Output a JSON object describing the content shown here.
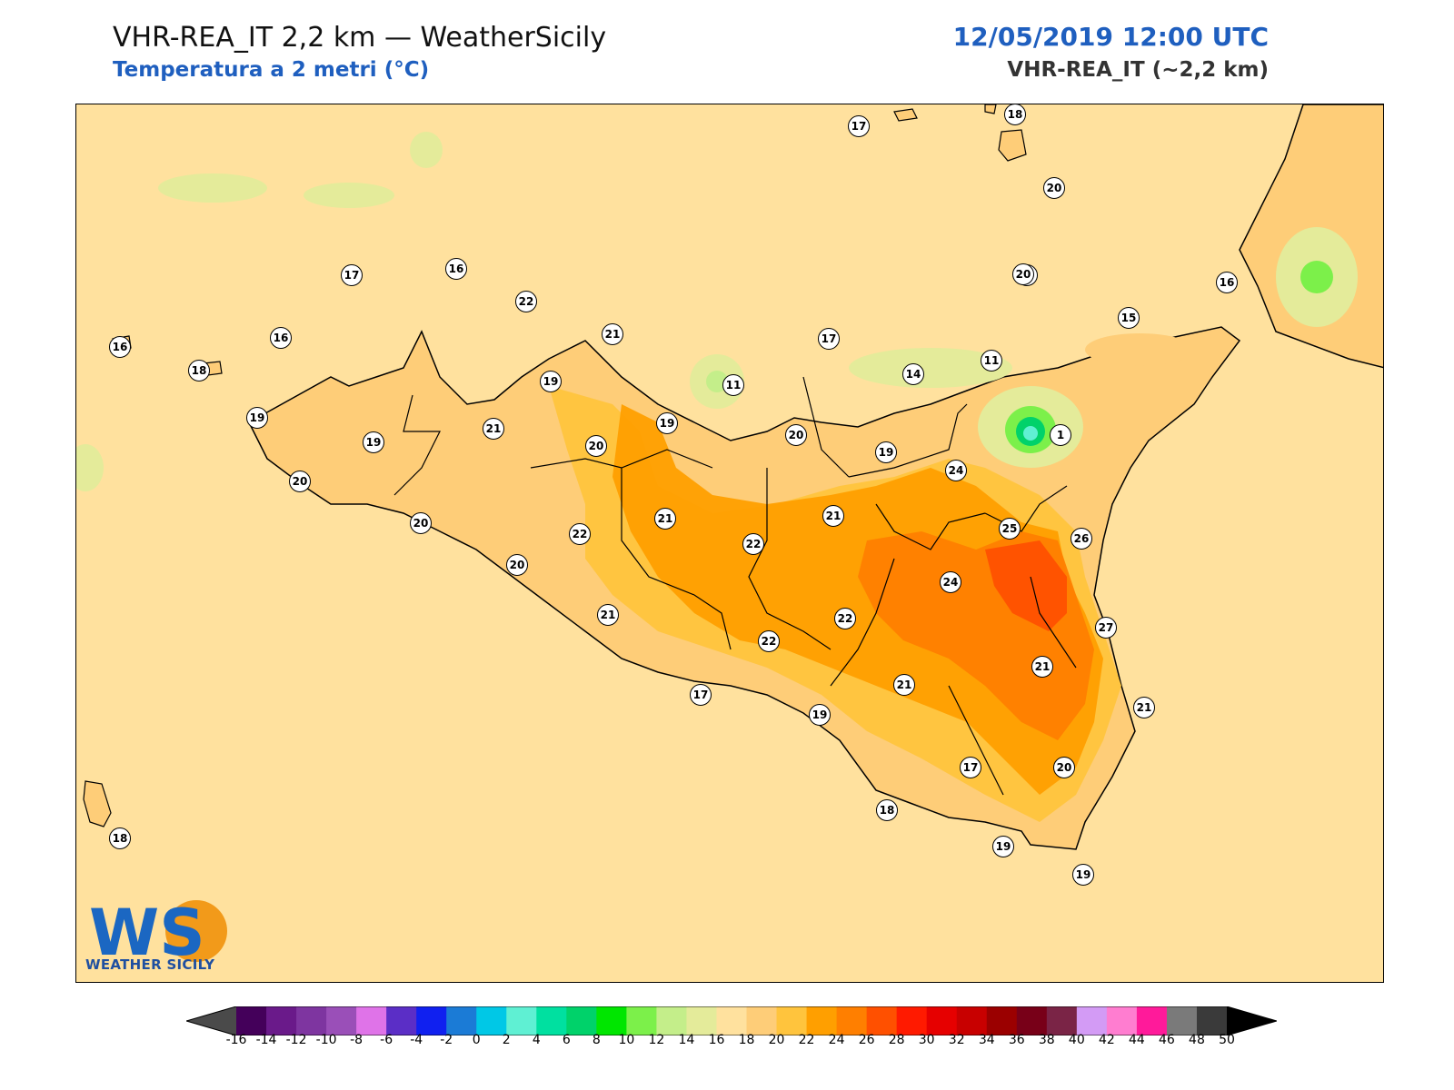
{
  "header": {
    "title": "VHR-REA_IT 2,2 km — WeatherSicily",
    "subtitle": "Temperatura a 2 metri (°C)",
    "datetime": "12/05/2019 12:00 UTC",
    "model": "VHR-REA_IT (~2,2 km)"
  },
  "logo": {
    "letters": "WS",
    "name": "WEATHER SICILY"
  },
  "stations": [
    {
      "value": "17"
    },
    {
      "value": "18"
    },
    {
      "value": "20"
    },
    {
      "value": "20"
    },
    {
      "value": "16"
    },
    {
      "value": "15"
    },
    {
      "value": "11"
    },
    {
      "value": "14"
    },
    {
      "value": "17"
    },
    {
      "value": "1"
    },
    {
      "value": "11"
    },
    {
      "value": "20"
    },
    {
      "value": "19"
    },
    {
      "value": "24"
    },
    {
      "value": "21"
    },
    {
      "value": "25"
    },
    {
      "value": "26"
    },
    {
      "value": "24"
    },
    {
      "value": "27"
    },
    {
      "value": "21"
    },
    {
      "value": "21"
    },
    {
      "value": "22"
    },
    {
      "value": "21"
    },
    {
      "value": "20"
    },
    {
      "value": "17"
    },
    {
      "value": "19"
    },
    {
      "value": "18"
    },
    {
      "value": "19"
    },
    {
      "value": "19"
    },
    {
      "value": "16"
    },
    {
      "value": "22"
    },
    {
      "value": "17"
    },
    {
      "value": "16"
    },
    {
      "value": "20"
    },
    {
      "value": "21"
    },
    {
      "value": "19"
    },
    {
      "value": "16"
    },
    {
      "value": "18"
    },
    {
      "value": "19"
    },
    {
      "value": "19"
    },
    {
      "value": "21"
    },
    {
      "value": "20"
    },
    {
      "value": "19"
    },
    {
      "value": "20"
    },
    {
      "value": "20"
    },
    {
      "value": "22"
    },
    {
      "value": "20"
    },
    {
      "value": "21"
    },
    {
      "value": "22"
    },
    {
      "value": "21"
    },
    {
      "value": "22"
    },
    {
      "value": "17"
    },
    {
      "value": "18"
    }
  ],
  "colorbar": {
    "ticks": [
      "-16",
      "-14",
      "-12",
      "-10",
      "-8",
      "-6",
      "-4",
      "-2",
      "0",
      "2",
      "4",
      "6",
      "8",
      "10",
      "12",
      "14",
      "16",
      "18",
      "20",
      "22",
      "24",
      "26",
      "28",
      "30",
      "32",
      "34",
      "36",
      "38",
      "40",
      "42",
      "44",
      "46",
      "48",
      "50"
    ],
    "colors": [
      "#44005a",
      "#6a1a8a",
      "#7e35a0",
      "#9a4fb8",
      "#df73e8",
      "#5b2ec6",
      "#1020f0",
      "#1b7bd6",
      "#00c8e6",
      "#5ff0d3",
      "#00e0a0",
      "#00d26a",
      "#00e600",
      "#7cf04a",
      "#c4ee8a",
      "#e4eb9a",
      "#ffe19e",
      "#fecd78",
      "#ffc43d",
      "#ff9f00",
      "#ff7f00",
      "#ff5000",
      "#ff1a00",
      "#e60000",
      "#c80000",
      "#9b0000",
      "#780018",
      "#7a2446",
      "#d39bf5",
      "#ff7dd0",
      "#ff1a9a",
      "#7a7a7a",
      "#3a3a3a"
    ]
  }
}
